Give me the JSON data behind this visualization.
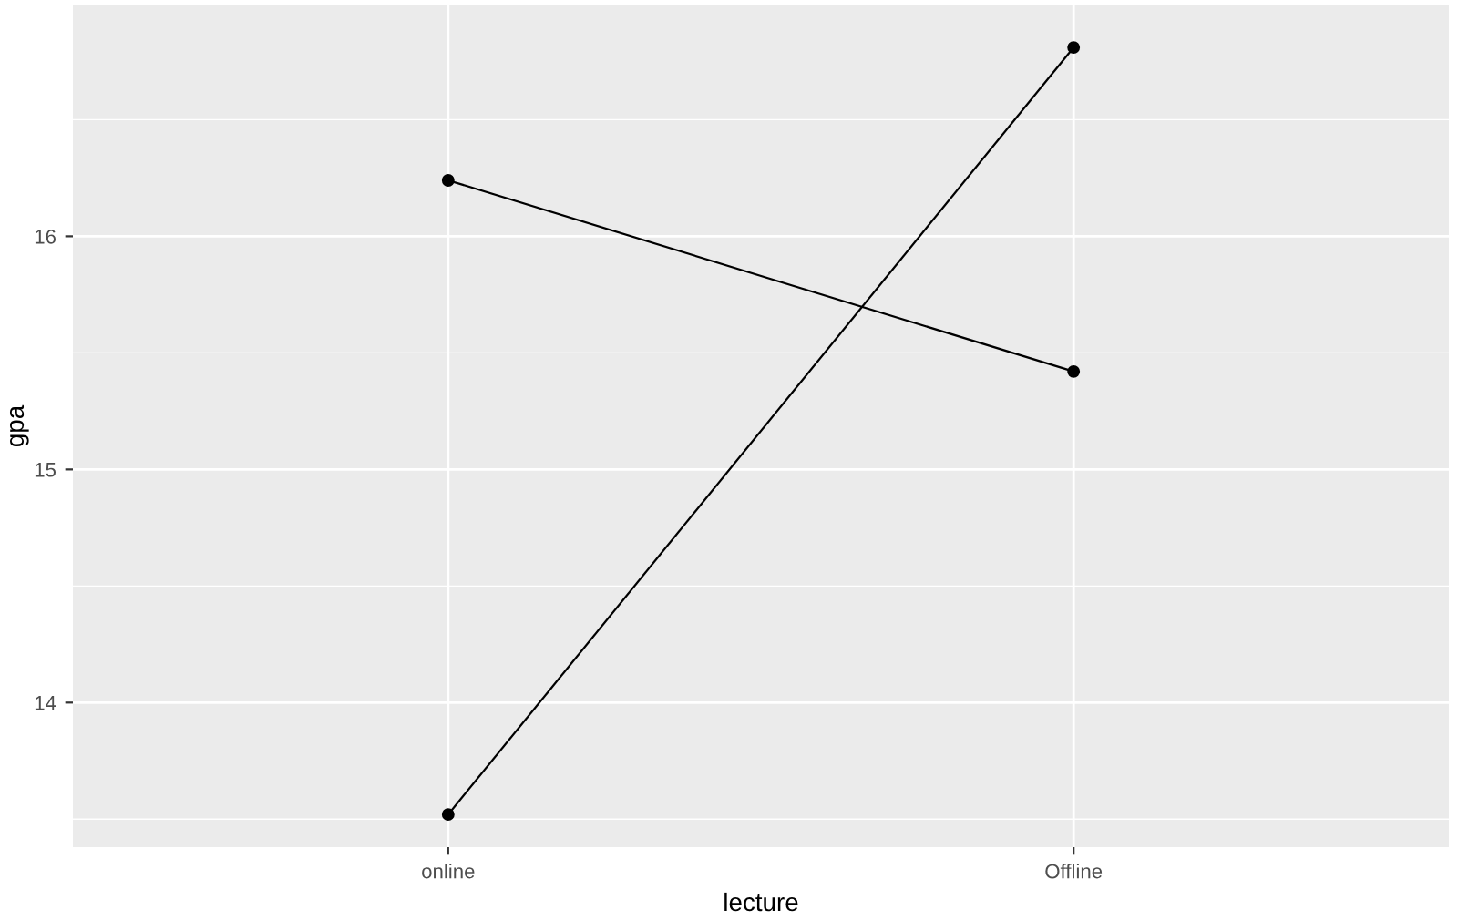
{
  "chart_data": {
    "type": "line",
    "xlabel": "lecture",
    "ylabel": "gpa",
    "categories": [
      "online",
      "Offline"
    ],
    "series": [
      {
        "color": "#000000",
        "values": [
          16.24,
          15.42
        ]
      },
      {
        "color": "#000000",
        "values": [
          13.52,
          16.81
        ]
      }
    ],
    "ylim": [
      13.38,
      16.99
    ],
    "yticks": [
      14,
      15,
      16
    ],
    "grid": true,
    "marker": "circle",
    "line_style": "solid"
  }
}
